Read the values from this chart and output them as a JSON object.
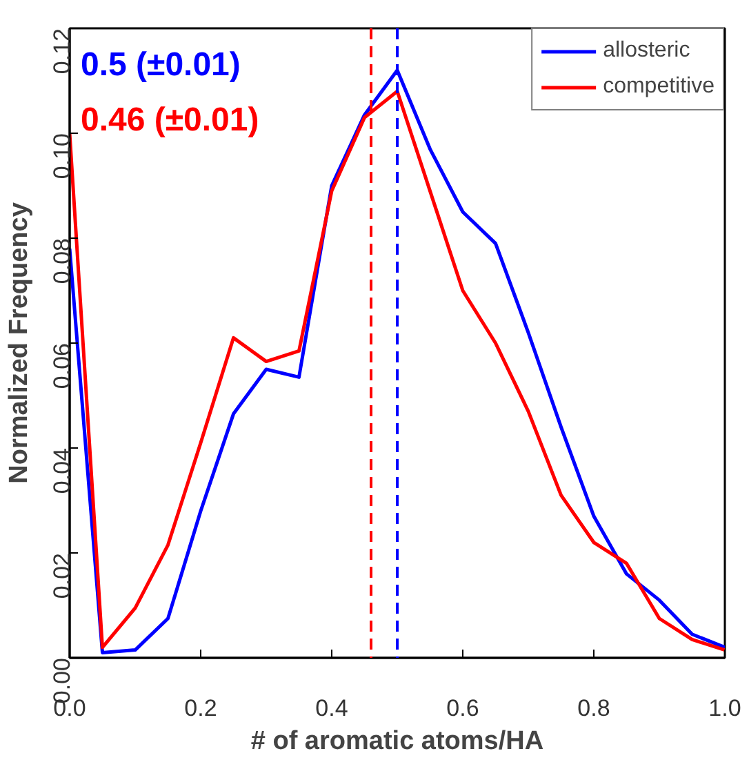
{
  "chart_data": {
    "type": "line",
    "xlabel": "# of aromatic atoms/HA",
    "ylabel": "Normalized Frequency",
    "x": [
      0,
      0.05,
      0.1,
      0.15,
      0.2,
      0.25,
      0.3,
      0.35,
      0.4,
      0.45,
      0.5,
      0.55,
      0.6,
      0.65,
      0.7,
      0.75,
      0.8,
      0.85,
      0.9,
      0.95,
      1.0
    ],
    "series": [
      {
        "name": "allosteric",
        "color": "#0000ff",
        "values": [
          0.078,
          0.001,
          0.0015,
          0.0075,
          0.028,
          0.0465,
          0.055,
          0.0535,
          0.09,
          0.1035,
          0.112,
          0.097,
          0.085,
          0.079,
          0.062,
          0.044,
          0.027,
          0.016,
          0.011,
          0.0045,
          0.002
        ]
      },
      {
        "name": "competitive",
        "color": "#ff0000",
        "values": [
          0.1,
          0.002,
          0.0095,
          0.0215,
          0.041,
          0.061,
          0.0565,
          0.0585,
          0.089,
          0.103,
          0.108,
          0.089,
          0.07,
          0.06,
          0.047,
          0.031,
          0.022,
          0.018,
          0.0075,
          0.0035,
          0.0015
        ]
      }
    ],
    "ref_lines": [
      {
        "axis": "x",
        "value": 0.5,
        "label": "0.5 (±0.01)",
        "color": "#0000ff",
        "line_style": "dashed"
      },
      {
        "axis": "x",
        "value": 0.46,
        "label": "0.46 (±0.01)",
        "color": "#ff0000",
        "line_style": "dashed"
      }
    ],
    "xlim": [
      0,
      1.0
    ],
    "xticks": [
      {
        "value": 0,
        "label": "0.0"
      },
      {
        "value": 0.2,
        "label": "0.2"
      },
      {
        "value": 0.4,
        "label": "0.4"
      },
      {
        "value": 0.6,
        "label": "0.6"
      },
      {
        "value": 0.8,
        "label": "0.8"
      },
      {
        "value": 1.0,
        "label": "1.0"
      }
    ],
    "ylim": [
      0,
      0.12
    ],
    "yticks": [
      {
        "value": 0,
        "label": "0.00"
      },
      {
        "value": 0.02,
        "label": "0.02"
      },
      {
        "value": 0.04,
        "label": "0.04"
      },
      {
        "value": 0.06,
        "label": "0.06"
      },
      {
        "value": 0.08,
        "label": "0.08"
      },
      {
        "value": 0.1,
        "label": "0.10"
      },
      {
        "value": 0.12,
        "label": "0.12"
      }
    ],
    "grid": false,
    "legend": "top right",
    "line_style": "solid",
    "marker": "none"
  }
}
